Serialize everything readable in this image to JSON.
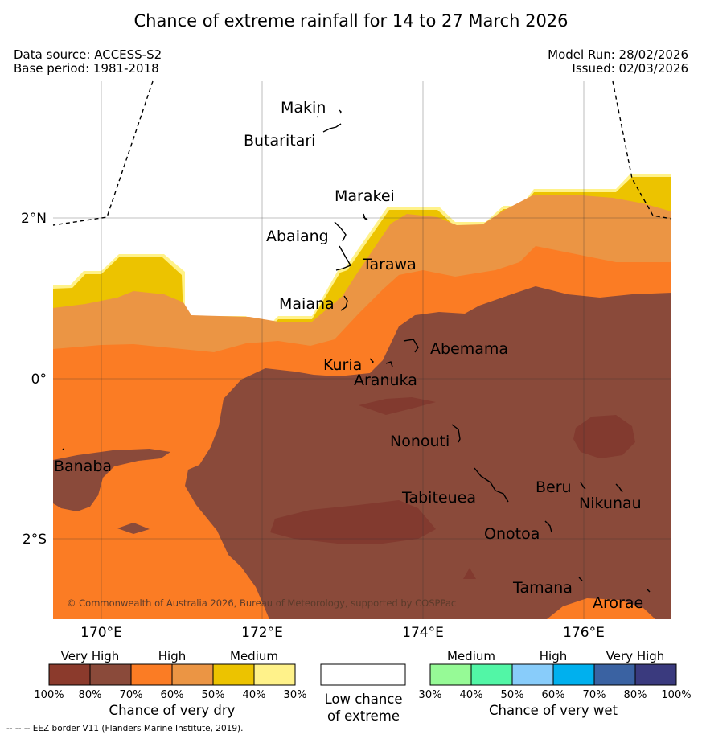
{
  "title": "Chance of extreme rainfall for 14 to 27 March 2026",
  "meta": {
    "data_source": "Data source: ACCESS-S2",
    "base_period": "Base period: 1981-2018",
    "model_run": "Model Run: 28/02/2026",
    "issued": "Issued: 02/03/2026"
  },
  "map": {
    "lon_ticks": [
      "170°E",
      "172°E",
      "174°E",
      "176°E"
    ],
    "lat_ticks": [
      "2°N",
      "0°",
      "2°S"
    ],
    "islands": [
      "Makin",
      "Butaritari",
      "Marakei",
      "Abaiang",
      "Tarawa",
      "Maiana",
      "Abemama",
      "Kuria",
      "Aranuka",
      "Nonouti",
      "Banaba",
      "Tabiteuea",
      "Beru",
      "Nikunau",
      "Onotoa",
      "Tamana",
      "Arorae"
    ],
    "credit": "© Commonwealth of Australia 2026, Bureau of Meteorology, supported by COSPPac"
  },
  "legend": {
    "dry": {
      "levels": [
        "Very High",
        "High",
        "Medium"
      ],
      "colors": [
        "#8b3a2c",
        "#8a4a3a",
        "#fb7c24",
        "#eb9544",
        "#ecc300",
        "#fff28a"
      ],
      "percents": [
        "100%",
        "80%",
        "70%",
        "60%",
        "50%",
        "40%",
        "30%"
      ],
      "caption": "Chance of very dry"
    },
    "low": {
      "caption_line1": "Low chance",
      "caption_line2": "of extreme",
      "color": "#ffffff"
    },
    "wet": {
      "levels": [
        "Medium",
        "High",
        "Very High"
      ],
      "colors": [
        "#96fa96",
        "#52f6a6",
        "#88ccfa",
        "#00b0ee",
        "#3a62a2",
        "#3a3a7e"
      ],
      "percents": [
        "30%",
        "40%",
        "50%",
        "60%",
        "70%",
        "80%",
        "100%"
      ],
      "caption": "Chance of very wet"
    }
  },
  "footnote": "-- -- -- EEZ border V11 (Flanders Marine Institute, 2019)."
}
